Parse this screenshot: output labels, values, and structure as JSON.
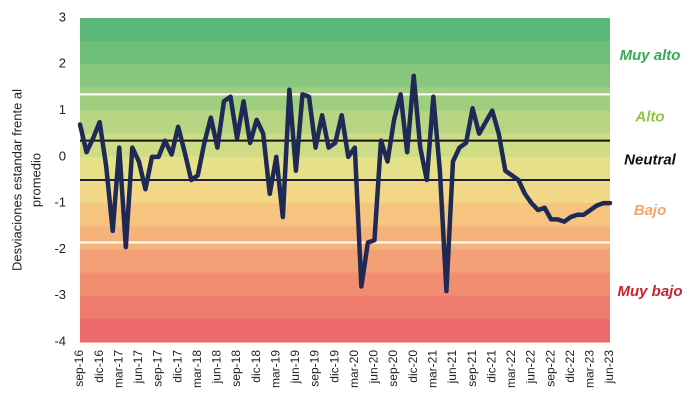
{
  "chart_data": {
    "type": "line",
    "ylabel": [
      "Desviaciones estandar frente al",
      "promedio"
    ],
    "categories": [
      "sep-16",
      null,
      null,
      "dic-16",
      null,
      null,
      "mar-17",
      null,
      null,
      "jun-17",
      null,
      null,
      "sep-17",
      null,
      null,
      "dic-17",
      null,
      null,
      "mar-18",
      null,
      null,
      "jun-18",
      null,
      null,
      "sep-18",
      null,
      null,
      "dic-18",
      null,
      null,
      "mar-19",
      null,
      null,
      "jun-19",
      null,
      null,
      "sep-19",
      null,
      null,
      "dic-19",
      null,
      null,
      "mar-20",
      null,
      null,
      "jun-20",
      null,
      null,
      "sep-20",
      null,
      null,
      "dic-20",
      null,
      null,
      "mar-21",
      null,
      null,
      "jun-21",
      null,
      null,
      "sep-21",
      null,
      null,
      "dic-21",
      null,
      null,
      "mar-22",
      null,
      null,
      "jun-22",
      null,
      null,
      "sep-22",
      null,
      null,
      "dic-22",
      null,
      null,
      "mar-23",
      null,
      null,
      "jun-23"
    ],
    "series": [
      {
        "color": "#1e2a55",
        "values": [
          0.7,
          0.1,
          0.4,
          0.75,
          -0.2,
          -1.6,
          0.2,
          -1.95,
          0.2,
          -0.1,
          -0.7,
          0.0,
          0.0,
          0.35,
          0.05,
          0.65,
          0.1,
          -0.5,
          -0.4,
          0.3,
          0.85,
          0.2,
          1.2,
          1.3,
          0.4,
          1.2,
          0.3,
          0.8,
          0.5,
          -0.8,
          0.0,
          -1.3,
          1.45,
          -0.3,
          1.35,
          1.3,
          0.2,
          0.9,
          0.2,
          0.3,
          0.9,
          0.0,
          0.2,
          -2.8,
          -1.85,
          -1.8,
          0.35,
          -0.1,
          0.8,
          1.35,
          0.1,
          1.75,
          0.2,
          -0.5,
          1.3,
          -0.3,
          -2.9,
          -0.1,
          0.2,
          0.3,
          1.05,
          0.5,
          0.75,
          1.0,
          0.5,
          -0.3,
          -0.4,
          -0.5,
          -0.8,
          -1.0,
          -1.15,
          -1.1,
          -1.35,
          -1.35,
          -1.4,
          -1.3,
          -1.25,
          -1.25,
          -1.15,
          -1.05,
          -1.0,
          -1.0
        ]
      }
    ],
    "ylim": [
      -4,
      3
    ],
    "yticks": [
      -4,
      -3,
      -2,
      -1,
      0,
      1,
      2,
      3
    ],
    "band_colors": [
      "#5cb878",
      "#6fbf7a",
      "#87c77d",
      "#9fce80",
      "#b7d583",
      "#cfdc86",
      "#e6e089",
      "#f2d886",
      "#f6c47f",
      "#f5b27a",
      "#f3a076",
      "#f18e72",
      "#ef7c6e",
      "#ed6a6a"
    ],
    "reference_lines": [
      {
        "value": 1.35,
        "color": "#ffffff"
      },
      {
        "value": 0.35,
        "color": "#111111"
      },
      {
        "value": -0.5,
        "color": "#1a1f3a"
      },
      {
        "value": -1.85,
        "color": "#ffffff"
      }
    ],
    "zones": [
      {
        "label": "Muy alto",
        "color": "#3aa852"
      },
      {
        "label": "Alto",
        "color": "#8cc63f"
      },
      {
        "label": "Neutral",
        "color": "#111111"
      },
      {
        "label": "Bajo",
        "color": "#f4a66a"
      },
      {
        "label": "Muy bajo",
        "color": "#c8232c"
      }
    ]
  }
}
